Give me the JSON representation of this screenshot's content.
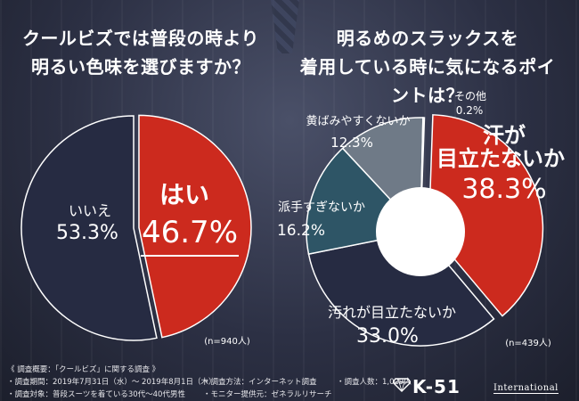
{
  "chart1": {
    "title_line1": "クールビズでは普段の時より",
    "title_line2": "明るい色味を選びますか？",
    "n": "(n=940人)"
  },
  "chart2": {
    "title_line1": "明るめのスラックスを",
    "title_line2": "着用している時に気になるポイントは？",
    "n": "(n=439人)"
  },
  "chart_data": [
    {
      "type": "pie",
      "categories": [
        "はい",
        "いいえ"
      ],
      "values": [
        46.7,
        53.3
      ],
      "value_labels": [
        "46.7%",
        "53.3%"
      ],
      "colors": [
        "#cc2a1e",
        "#262b42"
      ]
    },
    {
      "type": "pie",
      "donut": true,
      "categories": [
        "汗が目立たないか",
        "汚れが目立たないか",
        "派手すぎないか",
        "黄ばみやすくないか",
        "その他"
      ],
      "values": [
        38.3,
        33.0,
        16.2,
        12.3,
        0.2
      ],
      "value_labels": [
        "38.3%",
        "33.0%",
        "16.2%",
        "12.3%",
        "0.2%"
      ],
      "colors": [
        "#cc2a1e",
        "#262b42",
        "#2e5566",
        "#6f7a87",
        "#9aa4ae"
      ]
    }
  ],
  "footer": {
    "survey_title": "《 調査概要：「クールビズ」に関する調査 》",
    "period": "・調査期間：2019年7月31日（水）～ 2019年8月1日（木）",
    "method": "・調査方法：インターネット調査",
    "respondents": "・調査人数：1,029人",
    "target": "・調査対象：普段スーツを着ている30代～40代男性",
    "provider": "・モニター提供元：ゼネラルリサーチ"
  },
  "brand": {
    "logo": "K-51",
    "subtitle": "International"
  }
}
